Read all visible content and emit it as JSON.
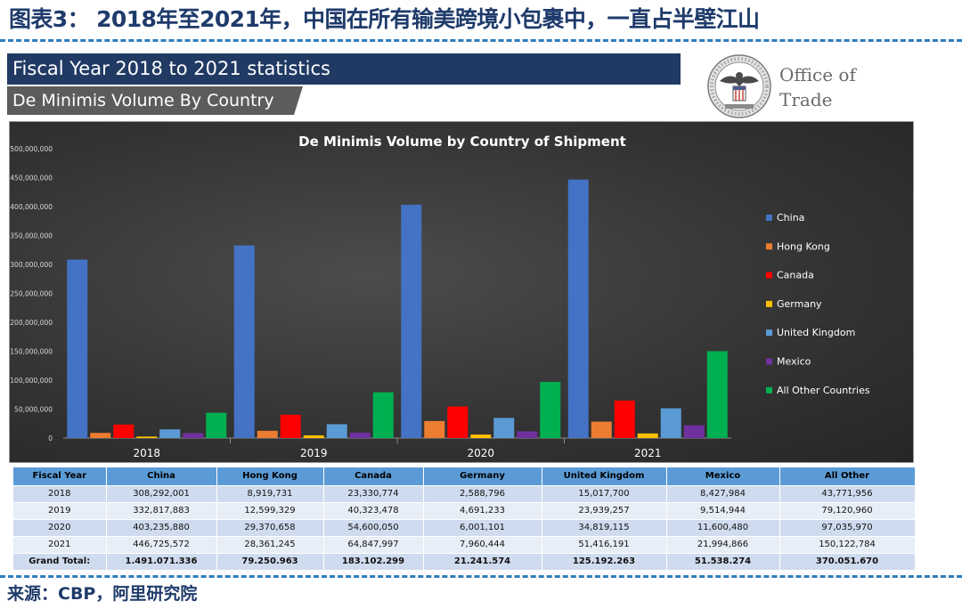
{
  "header": {
    "title": "图表3： 2018年至2021年，中国在所有输美跨境小包裹中，一直占半壁江山"
  },
  "banner": {
    "fiscal": "Fiscal Year 2018 to 2021 statistics",
    "subtitle": "De Minimis Volume By Country"
  },
  "logo": {
    "line1": "Office of",
    "line2": "Trade"
  },
  "colors": {
    "China": "#4472c4",
    "Hong Kong": "#ed7d31",
    "Canada": "#ff0000",
    "Germany": "#ffc000",
    "United Kingdom": "#5b9bd5",
    "Mexico": "#7030a0",
    "All Other Countries": "#00b050"
  },
  "chart_data": {
    "type": "bar",
    "title": "De Minimis Volume by Country of Shipment",
    "categories": [
      "2018",
      "2019",
      "2020",
      "2021"
    ],
    "ylim": [
      0,
      500000000
    ],
    "yticks": [
      "0",
      "50,000,000",
      "100,000,000",
      "150,000,000",
      "200,000,000",
      "250,000,000",
      "300,000,000",
      "350,000,000",
      "400,000,000",
      "450,000,000",
      "500,000,000"
    ],
    "ytick_values": [
      0,
      50000000,
      100000000,
      150000000,
      200000000,
      250000000,
      300000000,
      350000000,
      400000000,
      450000000,
      500000000
    ],
    "legend_position": "right",
    "grid": false,
    "series": [
      {
        "name": "China",
        "values": [
          308292001,
          332817883,
          403235880,
          446725572
        ]
      },
      {
        "name": "Hong Kong",
        "values": [
          8919731,
          12599329,
          29370658,
          28361245
        ]
      },
      {
        "name": "Canada",
        "values": [
          23330774,
          40323478,
          54600050,
          64847997
        ]
      },
      {
        "name": "Germany",
        "values": [
          2588796,
          4691233,
          6001101,
          7960444
        ]
      },
      {
        "name": "United Kingdom",
        "values": [
          15017700,
          23939257,
          34819115,
          51416191
        ]
      },
      {
        "name": "Mexico",
        "values": [
          8427984,
          9514944,
          11600480,
          21994866
        ]
      },
      {
        "name": "All Other Countries",
        "values": [
          43771956,
          79120960,
          97035970,
          150122784
        ]
      }
    ]
  },
  "table": {
    "headers": [
      "Fiscal Year",
      "China",
      "Hong Kong",
      "Canada",
      "Germany",
      "United Kingdom",
      "Mexico",
      "All Other"
    ],
    "rows": [
      [
        "2018",
        "308,292,001",
        "8,919,731",
        "23,330,774",
        "2,588,796",
        "15,017,700",
        "8,427,984",
        "43,771,956"
      ],
      [
        "2019",
        "332,817,883",
        "12,599,329",
        "40,323,478",
        "4,691,233",
        "23,939,257",
        "9,514,944",
        "79,120,960"
      ],
      [
        "2020",
        "403,235,880",
        "29,370,658",
        "54,600,050",
        "6,001,101",
        "34,819,115",
        "11,600,480",
        "97,035,970"
      ],
      [
        "2021",
        "446,725,572",
        "28,361,245",
        "64,847,997",
        "7,960,444",
        "51,416,191",
        "21,994,866",
        "150,122,784"
      ]
    ],
    "total": [
      "Grand Total:",
      "1.491.071.336",
      "79.250.963",
      "183.102.299",
      "21.241.574",
      "125.192.263",
      "51.538.274",
      "370.051.670"
    ]
  },
  "footer": {
    "source": "来源：CBP，阿里研究院"
  }
}
